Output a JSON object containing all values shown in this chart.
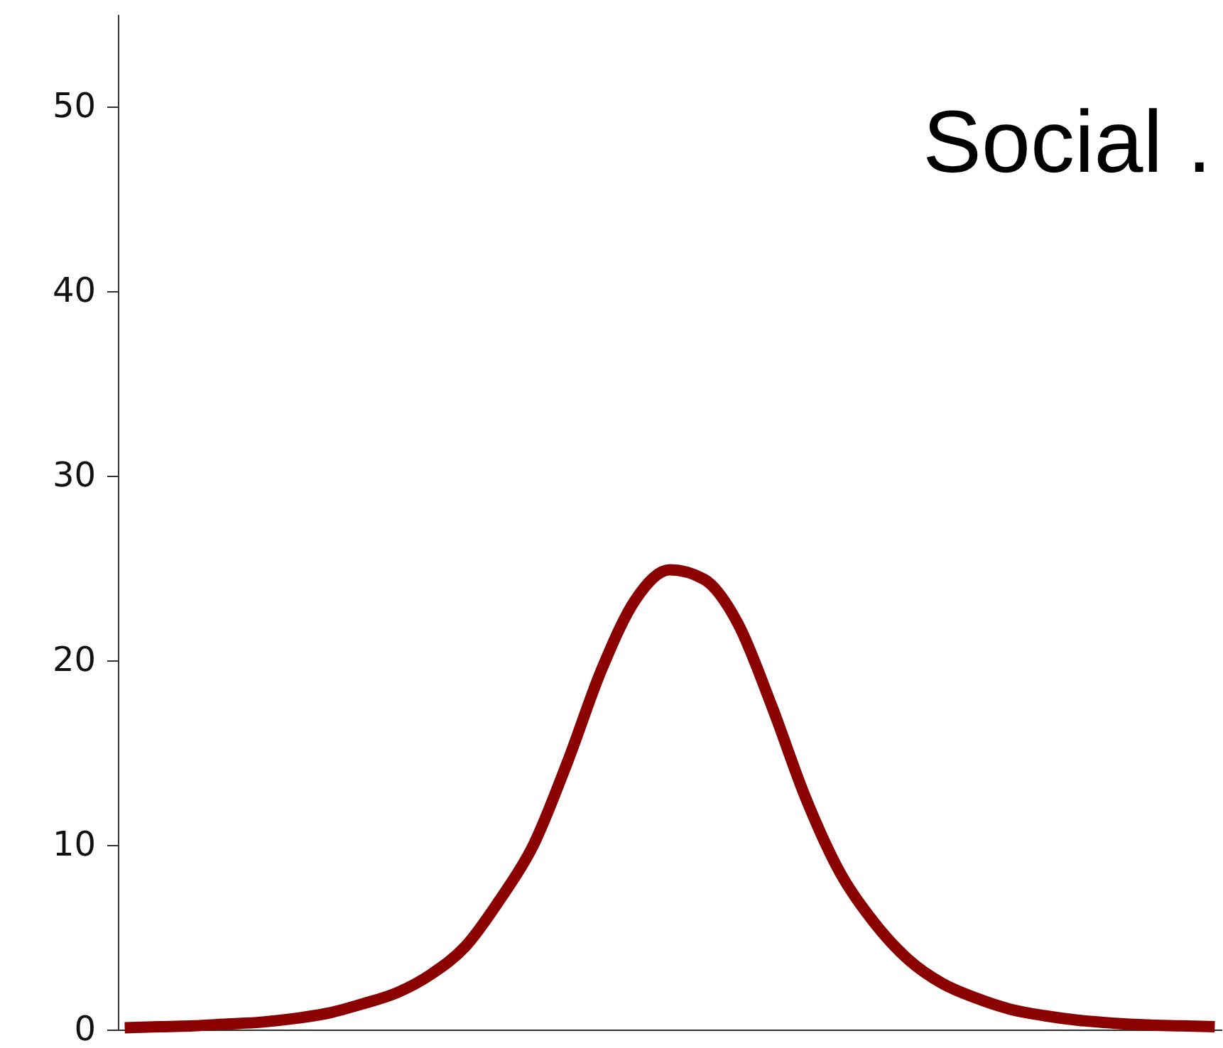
{
  "chart_data": {
    "type": "line",
    "annotations": [
      "Social ."
    ],
    "categories": [
      null,
      null,
      null,
      null,
      null,
      null,
      null,
      null,
      null,
      null,
      null,
      null,
      null,
      null,
      null,
      null,
      null,
      null,
      null,
      null,
      null,
      null,
      null,
      null,
      null,
      null,
      null,
      null,
      null,
      null,
      null,
      null,
      null
    ],
    "series": [
      {
        "color": "#8b0000",
        "values": [
          0.1,
          0.15,
          0.2,
          0.3,
          0.4,
          0.6,
          0.9,
          1.4,
          2,
          3,
          4.5,
          7,
          10,
          14.5,
          19.5,
          23.3,
          24.9,
          24.4,
          22,
          17.5,
          12.5,
          8.5,
          5.8,
          3.8,
          2.5,
          1.7,
          1.1,
          0.75,
          0.5,
          0.35,
          0.25,
          0.2,
          0.15
        ]
      }
    ],
    "ylim": [
      0,
      55
    ],
    "yticks": [
      0,
      10,
      20,
      30,
      40,
      50
    ],
    "grid": false,
    "tick_labels": "y",
    "line_style": "solid",
    "marker": "none"
  }
}
